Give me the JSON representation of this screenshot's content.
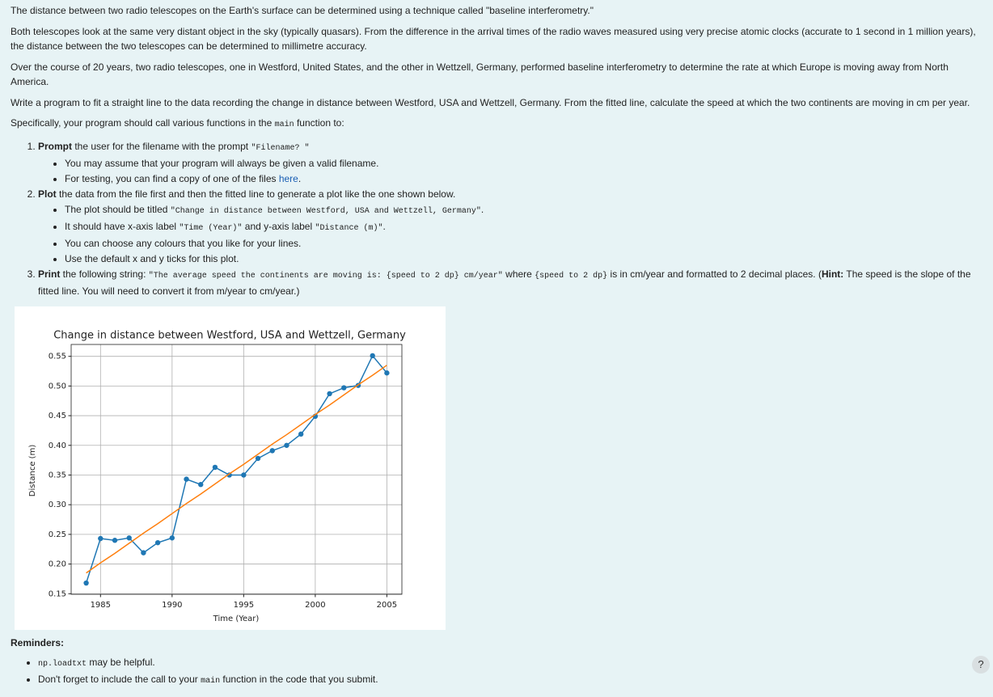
{
  "paragraphs": [
    [
      "The distance between two radio telescopes on the Earth's surface can be determined using a technique called \"baseline interferometry.\""
    ],
    [
      "Both telescopes look at the same very distant object in the sky (typically quasars). From the difference in the arrival times of the radio waves measured using very precise atomic clocks (accurate to 1 second in 1 million years), the distance between the two telescopes can be determined to millimetre accuracy."
    ],
    [
      "Over the course of 20 years, two radio telescopes, one in Westford, United States, and the other in Wettzell, Germany, performed baseline interferometry to determine the rate at which Europe is moving away from North America."
    ],
    [
      "Write a program to fit a straight line to the data recording the change in distance between Westford, USA and Wettzell, Germany. From the fitted line, calculate the speed at which the two continents are moving in cm per year."
    ],
    [
      "Specifically, your program should call various functions in the ",
      "main",
      " function to:"
    ]
  ],
  "steps": [
    {
      "text": [
        "Prompt",
        " the user for the filename with the prompt ",
        "\"Filename? \""
      ],
      "bullets": [
        [
          "You may assume that your program will always be given a valid filename."
        ],
        [
          "For testing, you can find a copy of one of the files ",
          "here",
          "."
        ]
      ]
    },
    {
      "text": [
        "Plot",
        " the data from the file first and then the fitted line to generate a plot like the one shown below."
      ],
      "bullets": [
        [
          "The plot should be titled ",
          "\"Change in distance between Westford, USA and Wettzell, Germany\"",
          "."
        ],
        [
          "It should have x-axis label ",
          "\"Time (Year)\"",
          " and y-axis label ",
          "\"Distance (m)\"",
          "."
        ],
        [
          "You can choose any colours that you like for your lines."
        ],
        [
          "Use the default x and y ticks for this plot."
        ]
      ]
    },
    {
      "text": [
        "Print",
        " the following string: ",
        "\"The average speed the continents are moving is: {speed to 2 dp} cm/year\"",
        " where ",
        "{speed to 2 dp}",
        " is in cm/year and formatted to 2 decimal places. (",
        "Hint:",
        " The speed is the slope of the fitted line. You will need to convert it from m/year to cm/year.)"
      ]
    }
  ],
  "reminders": {
    "title": "Reminders:",
    "items": [
      [
        "np.loadtxt",
        " may be helpful."
      ],
      [
        "Don't forget to include the call to your ",
        "main",
        " function in the code that you submit."
      ]
    ]
  },
  "help": "?",
  "chart_data": {
    "type": "line",
    "title": "Change in distance between Westford, USA and Wettzell, Germany",
    "x_label": "Time (Year)",
    "y_label": "Distance (m)",
    "x": [
      1984,
      1985,
      1986,
      1987,
      1988,
      1989,
      1990,
      1991,
      1992,
      1993,
      1994,
      1995,
      1996,
      1997,
      1998,
      1999,
      2000,
      2001,
      2002,
      2003,
      2004,
      2005
    ],
    "series": [
      {
        "color": "#1f77b4",
        "marker": "o",
        "values": [
          0.168,
          0.243,
          0.24,
          0.244,
          0.219,
          0.236,
          0.244,
          0.343,
          0.334,
          0.363,
          0.35,
          0.35,
          0.378,
          0.391,
          0.4,
          0.419,
          0.449,
          0.487,
          0.497,
          0.501,
          0.551,
          0.522
        ]
      },
      {
        "color": "#ff7f0e",
        "values": [
          0.185,
          0.202,
          0.218,
          0.235,
          0.252,
          0.268,
          0.285,
          0.302,
          0.318,
          0.335,
          0.352,
          0.368,
          0.385,
          0.402,
          0.418,
          0.435,
          0.452,
          0.468,
          0.485,
          0.502,
          0.518,
          0.535
        ]
      }
    ],
    "xlim": [
      1982.95,
      2006.05
    ],
    "ylim": [
      0.149,
      0.57
    ],
    "xticks": [
      1985,
      1990,
      1995,
      2000,
      2005
    ],
    "yticks": [
      0.15,
      {
        "value": 0.2,
        "label": "0.20"
      },
      0.25,
      {
        "value": 0.3,
        "label": "0.30"
      },
      0.35,
      {
        "value": 0.4,
        "label": "0.40"
      },
      0.45,
      {
        "value": 0.5,
        "label": "0.50"
      },
      0.55
    ],
    "grid": true
  }
}
